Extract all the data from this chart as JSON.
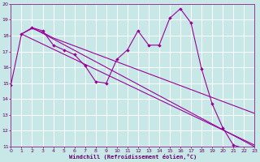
{
  "xlabel": "Windchill (Refroidissement éolien,°C)",
  "bg_color": "#c8e8e8",
  "line_color": "#990099",
  "grid_color": "#ffffff",
  "xlim": [
    0,
    23
  ],
  "ylim": [
    11,
    20
  ],
  "xticks": [
    0,
    1,
    2,
    3,
    4,
    5,
    6,
    7,
    8,
    9,
    10,
    11,
    12,
    13,
    14,
    15,
    16,
    17,
    18,
    19,
    20,
    21,
    22,
    23
  ],
  "yticks": [
    11,
    12,
    13,
    14,
    15,
    16,
    17,
    18,
    19,
    20
  ],
  "curve1_x": [
    0,
    1,
    2,
    3,
    4,
    5,
    6,
    7,
    8,
    9,
    10,
    11,
    12,
    13,
    14,
    15,
    16,
    17,
    18,
    19,
    20,
    21,
    22,
    23
  ],
  "curve1_y": [
    14.9,
    18.1,
    18.5,
    18.3,
    17.4,
    17.1,
    16.8,
    16.1,
    15.1,
    15.0,
    16.5,
    17.1,
    18.3,
    17.4,
    17.4,
    19.1,
    19.7,
    18.8,
    15.9,
    13.7,
    12.2,
    11.1,
    10.9,
    10.8
  ],
  "curve2_x": [
    1,
    2,
    3,
    4,
    5,
    6,
    7,
    8,
    9,
    10,
    11,
    12,
    13,
    14,
    15,
    16,
    17,
    18,
    19,
    20,
    21,
    22,
    23
  ],
  "curve2_y": [
    18.1,
    18.45,
    18.2,
    17.85,
    17.6,
    17.35,
    17.1,
    16.85,
    16.6,
    16.35,
    16.1,
    15.85,
    15.6,
    15.35,
    15.1,
    14.85,
    14.6,
    14.35,
    14.1,
    13.85,
    13.6,
    13.35,
    13.1
  ],
  "line1_x": [
    1,
    23
  ],
  "line1_y": [
    18.1,
    11.1
  ],
  "line2_x": [
    2,
    23
  ],
  "line2_y": [
    18.5,
    11.0
  ]
}
